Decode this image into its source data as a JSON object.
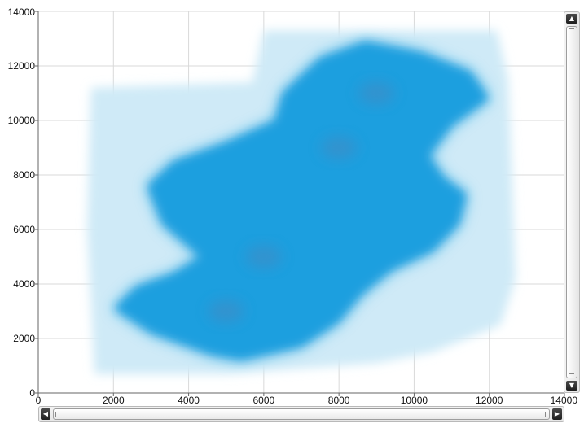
{
  "chart_data": {
    "type": "heatmap",
    "title": "",
    "xlabel": "",
    "ylabel": "",
    "xlim": [
      0,
      14000
    ],
    "ylim": [
      0,
      14000
    ],
    "x_ticks": [
      "0",
      "2000",
      "4000",
      "6000",
      "8000",
      "10000",
      "12000",
      "14000"
    ],
    "y_ticks": [
      "0",
      "2000",
      "4000",
      "6000",
      "8000",
      "10000",
      "12000",
      "14000"
    ],
    "grid": true,
    "colors": {
      "dense": "#1a9fdf",
      "sparse": "#cfeaf7",
      "core": "#3a8fc9",
      "grid": "#d9d9d9"
    },
    "density_cores": [
      {
        "x": 5000,
        "y": 3000
      },
      {
        "x": 6000,
        "y": 5000
      },
      {
        "x": 8000,
        "y": 9000
      },
      {
        "x": 9000,
        "y": 11000
      }
    ],
    "sparse_region": [
      [
        1500,
        700
      ],
      [
        5000,
        700
      ],
      [
        9000,
        1100
      ],
      [
        10500,
        1500
      ],
      [
        12300,
        2500
      ],
      [
        12700,
        4200
      ],
      [
        12600,
        8000
      ],
      [
        12500,
        11500
      ],
      [
        12200,
        13300
      ],
      [
        6000,
        13300
      ],
      [
        5700,
        11400
      ],
      [
        1400,
        11200
      ],
      [
        1300,
        6000
      ]
    ],
    "dense_region": [
      [
        2000,
        3100
      ],
      [
        3000,
        2200
      ],
      [
        4600,
        1400
      ],
      [
        5400,
        1200
      ],
      [
        7000,
        1700
      ],
      [
        8000,
        2600
      ],
      [
        8600,
        3600
      ],
      [
        9400,
        4500
      ],
      [
        10500,
        5200
      ],
      [
        11200,
        6200
      ],
      [
        11400,
        7300
      ],
      [
        10800,
        7900
      ],
      [
        10400,
        8700
      ],
      [
        11000,
        9800
      ],
      [
        12000,
        10800
      ],
      [
        11500,
        11800
      ],
      [
        10200,
        12500
      ],
      [
        8700,
        12900
      ],
      [
        7500,
        12300
      ],
      [
        6500,
        11000
      ],
      [
        6300,
        10000
      ],
      [
        5000,
        9200
      ],
      [
        3600,
        8500
      ],
      [
        2900,
        7600
      ],
      [
        3300,
        6200
      ],
      [
        4300,
        5000
      ],
      [
        3600,
        4400
      ],
      [
        2600,
        3900
      ]
    ]
  },
  "scrollbars": {
    "vertical_up_icon": "▲",
    "vertical_down_icon": "▼",
    "horizontal_left_icon": "◀",
    "horizontal_right_icon": "▶"
  }
}
